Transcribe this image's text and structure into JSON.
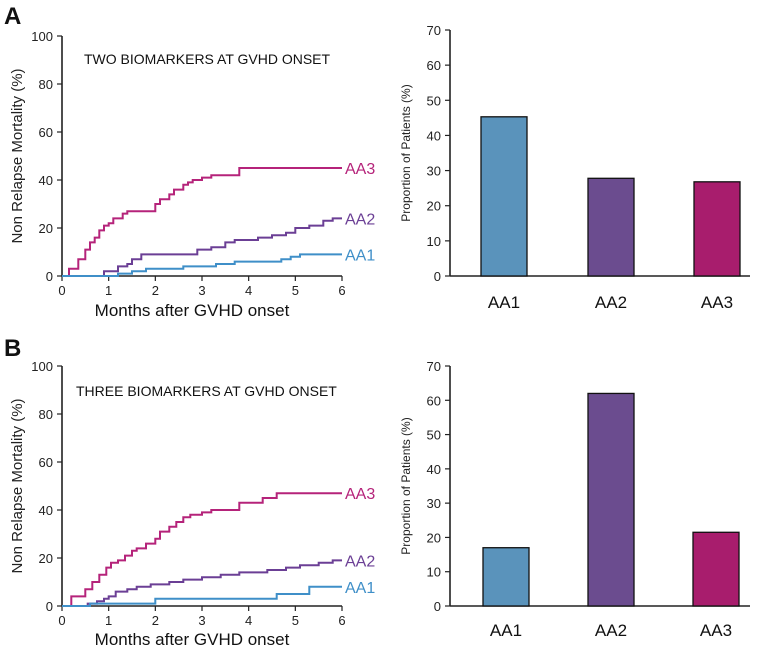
{
  "chart_data": [
    {
      "type": "line",
      "panel": "A",
      "title": "TWO BIOMARKERS AT GVHD ONSET",
      "xlabel": "Months after GVHD onset",
      "ylabel": "Non Relapse Mortality (%)",
      "xlim": [
        0,
        6
      ],
      "ylim": [
        0,
        100
      ],
      "xticks": [
        "0",
        "1",
        "2",
        "3",
        "4",
        "5",
        "6"
      ],
      "yticks": [
        "0",
        "20",
        "40",
        "60",
        "80",
        "100"
      ],
      "series": [
        {
          "name": "AA3",
          "color": "#b5237a",
          "x": [
            0,
            0.15,
            0.15,
            0.35,
            0.35,
            0.5,
            0.5,
            0.6,
            0.6,
            0.7,
            0.7,
            0.8,
            0.8,
            0.9,
            0.9,
            1.0,
            1.0,
            1.1,
            1.1,
            1.3,
            1.3,
            1.4,
            1.4,
            2.0,
            2.0,
            2.1,
            2.1,
            2.3,
            2.3,
            2.4,
            2.4,
            2.6,
            2.6,
            2.7,
            2.7,
            2.8,
            2.8,
            3.0,
            3.0,
            3.2,
            3.2,
            3.8,
            3.8,
            6.0
          ],
          "y": [
            0,
            0,
            3,
            3,
            7,
            7,
            11,
            11,
            14,
            14,
            16,
            16,
            19,
            19,
            21,
            21,
            22,
            22,
            24,
            24,
            26,
            26,
            27,
            27,
            30,
            30,
            32,
            32,
            34,
            34,
            36,
            36,
            38,
            38,
            39,
            39,
            40,
            40,
            41,
            41,
            42,
            42,
            45,
            45
          ]
        },
        {
          "name": "AA2",
          "color": "#6b3f95",
          "x": [
            0,
            0.9,
            0.9,
            1.2,
            1.2,
            1.4,
            1.4,
            1.5,
            1.5,
            1.7,
            1.7,
            2.9,
            2.9,
            3.2,
            3.2,
            3.5,
            3.5,
            3.7,
            3.7,
            4.2,
            4.2,
            4.5,
            4.5,
            4.8,
            4.8,
            5.0,
            5.0,
            5.3,
            5.3,
            5.6,
            5.6,
            5.8,
            5.8,
            6.0
          ],
          "y": [
            0,
            0,
            2,
            2,
            4,
            4,
            5,
            5,
            7,
            7,
            9,
            9,
            11,
            11,
            12,
            12,
            14,
            14,
            15,
            15,
            16,
            16,
            17,
            17,
            18,
            18,
            20,
            20,
            21,
            21,
            23,
            23,
            24,
            24
          ]
        },
        {
          "name": "AA1",
          "color": "#3f8fc8",
          "x": [
            0,
            1.2,
            1.2,
            1.5,
            1.5,
            1.8,
            1.8,
            2.6,
            2.6,
            3.3,
            3.3,
            3.7,
            3.7,
            4.7,
            4.7,
            4.9,
            4.9,
            5.1,
            5.1,
            6.0
          ],
          "y": [
            0,
            0,
            1,
            1,
            2,
            2,
            3,
            3,
            4,
            4,
            5,
            5,
            6,
            6,
            7,
            7,
            8,
            8,
            9,
            9
          ]
        }
      ]
    },
    {
      "type": "bar",
      "panel": "A",
      "ylabel": "Proportion of Patients (%)",
      "ylim": [
        0,
        70
      ],
      "yticks": [
        "0",
        "10",
        "20",
        "30",
        "40",
        "50",
        "60",
        "70"
      ],
      "categories": [
        "AA1",
        "AA2",
        "AA3"
      ],
      "values": [
        45.3,
        27.8,
        26.8
      ],
      "colors": [
        "#5a93bb",
        "#6b4c8f",
        "#a81d6d"
      ]
    },
    {
      "type": "line",
      "panel": "B",
      "title": "THREE BIOMARKERS AT GVHD ONSET",
      "xlabel": "Months after GVHD onset",
      "ylabel": "Non Relapse Mortality (%)",
      "xlim": [
        0,
        6
      ],
      "ylim": [
        0,
        100
      ],
      "xticks": [
        "0",
        "1",
        "2",
        "3",
        "4",
        "5",
        "6"
      ],
      "yticks": [
        "0",
        "20",
        "40",
        "60",
        "80",
        "100"
      ],
      "series": [
        {
          "name": "AA3",
          "color": "#b5237a",
          "x": [
            0,
            0.2,
            0.2,
            0.5,
            0.5,
            0.65,
            0.65,
            0.8,
            0.8,
            0.95,
            0.95,
            1.05,
            1.05,
            1.2,
            1.2,
            1.35,
            1.35,
            1.5,
            1.5,
            1.6,
            1.6,
            1.8,
            1.8,
            2.0,
            2.0,
            2.1,
            2.1,
            2.3,
            2.3,
            2.45,
            2.45,
            2.6,
            2.6,
            2.75,
            2.75,
            3.0,
            3.0,
            3.2,
            3.2,
            3.8,
            3.8,
            4.3,
            4.3,
            4.6,
            4.6,
            6.0
          ],
          "y": [
            0,
            0,
            4,
            4,
            7,
            7,
            10,
            10,
            13,
            13,
            16,
            16,
            18,
            18,
            19,
            19,
            21,
            21,
            23,
            23,
            24,
            24,
            26,
            26,
            28,
            28,
            31,
            31,
            33,
            33,
            35,
            35,
            37,
            37,
            38,
            38,
            39,
            39,
            40,
            40,
            43,
            43,
            45,
            45,
            47,
            47
          ]
        },
        {
          "name": "AA2",
          "color": "#6b3f95",
          "x": [
            0,
            0.55,
            0.55,
            0.75,
            0.75,
            0.9,
            0.9,
            1.0,
            1.0,
            1.15,
            1.15,
            1.4,
            1.4,
            1.6,
            1.6,
            1.9,
            1.9,
            2.3,
            2.3,
            2.6,
            2.6,
            3.0,
            3.0,
            3.4,
            3.4,
            3.8,
            3.8,
            4.4,
            4.4,
            4.8,
            4.8,
            5.1,
            5.1,
            5.5,
            5.5,
            5.8,
            5.8,
            6.0
          ],
          "y": [
            0,
            0,
            1,
            1,
            2,
            2,
            3,
            3,
            4,
            4,
            6,
            6,
            7,
            7,
            8,
            8,
            9,
            9,
            10,
            10,
            11,
            11,
            12,
            12,
            13,
            13,
            14,
            14,
            15,
            15,
            16,
            16,
            17,
            17,
            18,
            18,
            19,
            19
          ]
        },
        {
          "name": "AA1",
          "color": "#3f8fc8",
          "x": [
            0,
            0.6,
            0.6,
            2.0,
            2.0,
            4.6,
            4.6,
            5.3,
            5.3,
            6.0
          ],
          "y": [
            0,
            0,
            1,
            1,
            3,
            3,
            5,
            5,
            8,
            8
          ]
        }
      ]
    },
    {
      "type": "bar",
      "panel": "B",
      "ylabel": "Proportion of Patients (%)",
      "ylim": [
        0,
        70
      ],
      "yticks": [
        "0",
        "10",
        "20",
        "30",
        "40",
        "50",
        "60",
        "70"
      ],
      "categories": [
        "AA1",
        "AA2",
        "AA3"
      ],
      "values": [
        17,
        62,
        21.5
      ],
      "colors": [
        "#5a93bb",
        "#6b4c8f",
        "#a81d6d"
      ]
    }
  ]
}
